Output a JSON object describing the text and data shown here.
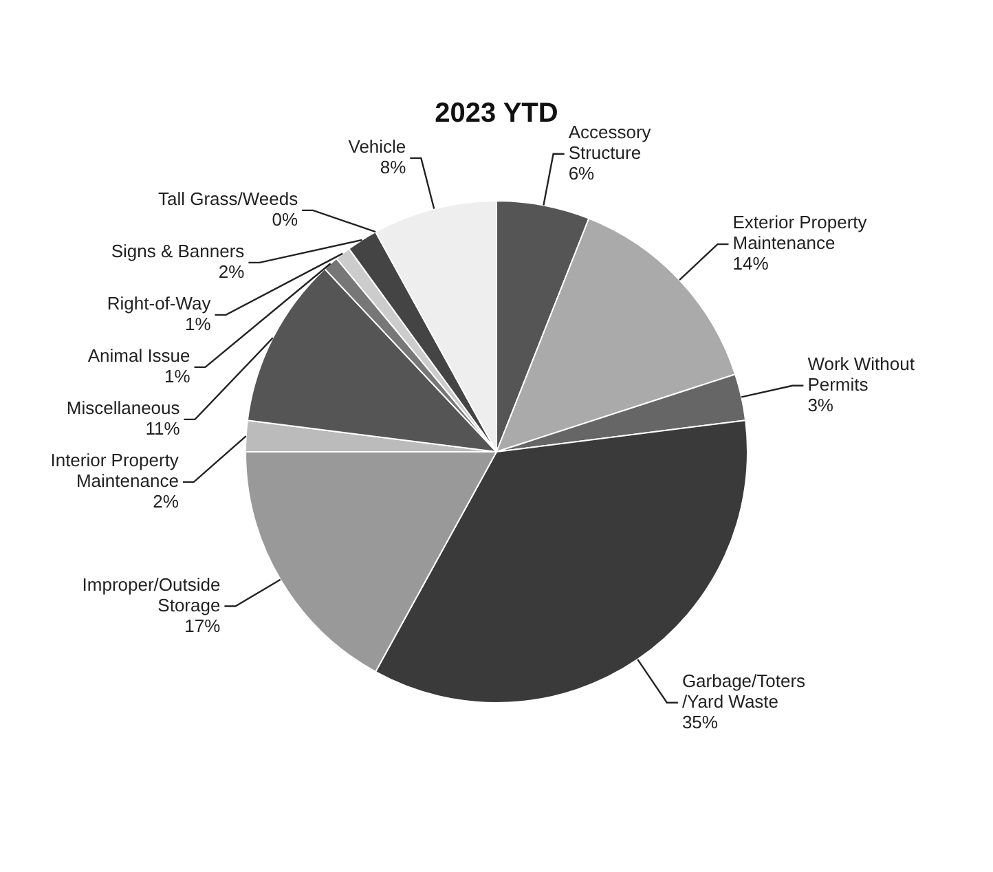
{
  "chart_data": {
    "type": "pie",
    "title": "2023 YTD",
    "categories": [
      "Accessory Structure",
      "Exterior Property Maintenance",
      "Work Without Permits",
      "Garbage/Toters /Yard Waste",
      "Improper/Outside Storage",
      "Interior Property Maintenance",
      "Miscellaneous",
      "Animal Issue",
      "Right-of-Way",
      "Signs & Banners",
      "Tall Grass/Weeds",
      "Vehicle"
    ],
    "values": [
      6,
      14,
      3,
      35,
      17,
      2,
      11,
      1,
      1,
      2,
      0,
      8
    ],
    "value_labels": [
      "6%",
      "14%",
      "3%",
      "35%",
      "17%",
      "2%",
      "11%",
      "1%",
      "1%",
      "2%",
      "0%",
      "8%"
    ],
    "colors": [
      "#555555",
      "#aaaaaa",
      "#666666",
      "#3a3a3a",
      "#999999",
      "#bbbbbb",
      "#555555",
      "#777777",
      "#cccccc",
      "#444444",
      "#888888",
      "#eeeeee"
    ],
    "legend": false
  }
}
